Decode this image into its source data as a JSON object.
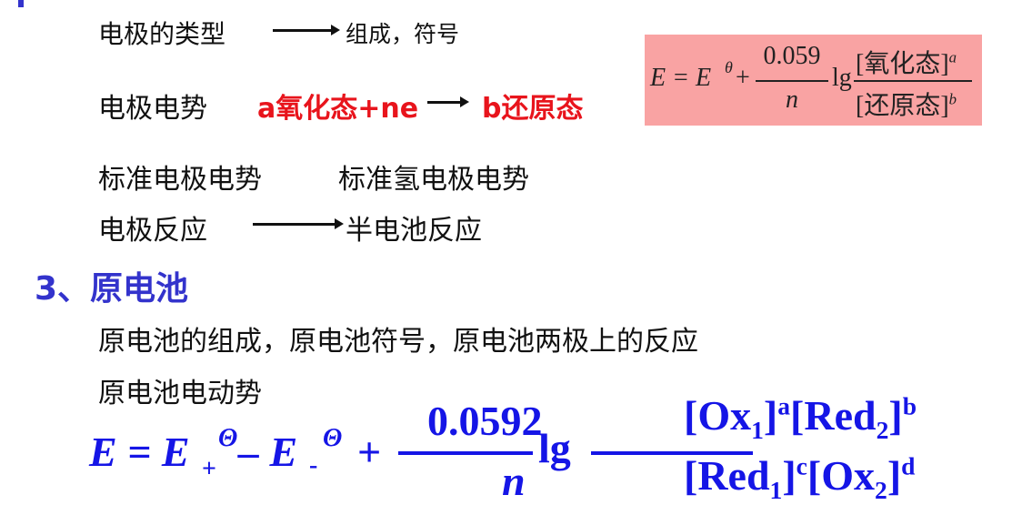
{
  "line1": {
    "left": "电极的类型",
    "right": "组成，符号"
  },
  "line2": {
    "label": "电极电势",
    "reactant": "a氧化态+ne",
    "product": "b还原态"
  },
  "nernst_box": {
    "lhs": "E = E",
    "theta": "θ",
    "plus": "+",
    "numerator": "0.059",
    "denominator": "n",
    "lg": "lg",
    "ox": "[氧化态]",
    "ox_exp": "a",
    "red": "[还原态]",
    "red_exp": "b",
    "bg_color": "#f9a3a3"
  },
  "line3": {
    "a": "标准电极电势",
    "b": "标准氢电极电势"
  },
  "line4": {
    "left": "电极反应",
    "right": "半电池反应"
  },
  "section": {
    "title": "3、原电池",
    "color": "#3333cc"
  },
  "line5": "原电池的组成，原电池符号，原电池两极上的反应",
  "line6": "原电池电动势",
  "emf_formula": {
    "lhs": "E = E",
    "plus_sub": "+",
    "theta": "Θ",
    "minus": "– E",
    "minus_sub": "-",
    "plus": "+",
    "numerator": "0.0592",
    "denominator": "n",
    "lg": "lg",
    "num_expr": {
      "ox1": "[Ox",
      "s1": "1",
      "a": "]",
      "ea": "a",
      "red2": "[Red",
      "s2": "2",
      "b": "]",
      "eb": "b"
    },
    "den_expr": {
      "red1": "[Red",
      "s1": "1",
      "c": "]",
      "ec": "c",
      "ox2": "[Ox",
      "s2": "2",
      "d": "]",
      "ed": "d"
    },
    "color": "#1515e6"
  }
}
